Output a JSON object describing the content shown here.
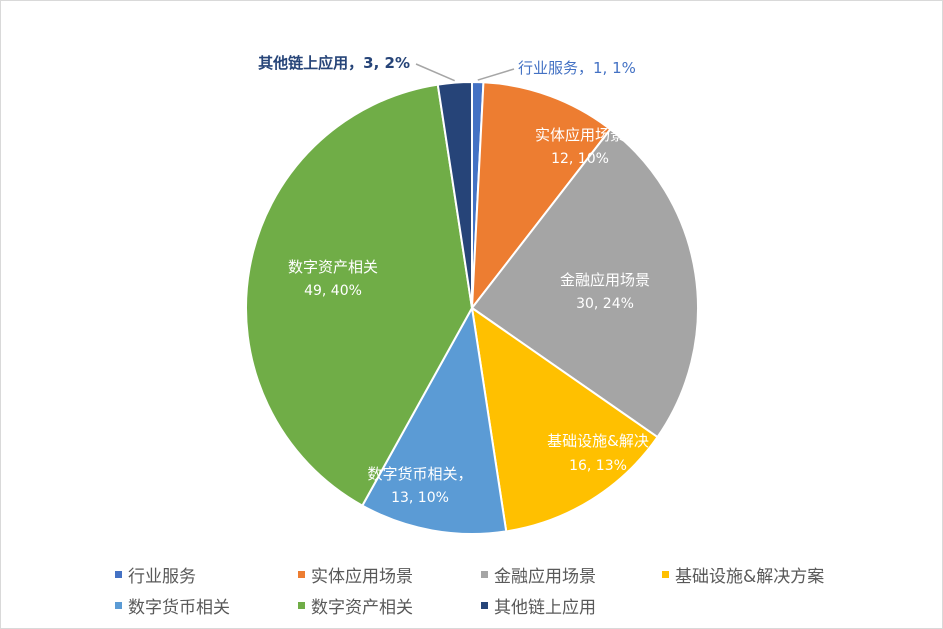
{
  "chart_data": {
    "type": "pie",
    "categories": [
      "行业服务",
      "实体应用场景",
      "金融应用场景",
      "基础设施&解决方案",
      "数字货币相关",
      "数字资产相关",
      "其他链上应用"
    ],
    "values": [
      1,
      12,
      30,
      16,
      13,
      49,
      3
    ],
    "percents": [
      "1%",
      "10%",
      "24%",
      "13%",
      "10%",
      "40%",
      "2%"
    ],
    "data_labels": [
      {
        "name": "行业服务，",
        "value": "1, 1%"
      },
      {
        "name": "实体应用场景",
        "value": "12, 10%"
      },
      {
        "name": "金融应用场景",
        "value": "30, 24%"
      },
      {
        "name": "基础设施&解决",
        "value": "16, 13%"
      },
      {
        "name": "数字货币相关，",
        "value": "13, 10%"
      },
      {
        "name": "数字资产相关",
        "value": "49, 40%"
      },
      {
        "name": "其他链上应用，",
        "value": "3, 2%"
      }
    ],
    "colors": [
      "#4472c4",
      "#ed7d31",
      "#a5a5a5",
      "#ffc000",
      "#5b9bd5",
      "#70ad47",
      "#264478"
    ],
    "legend_position": "bottom"
  },
  "legend": {
    "items": [
      "行业服务",
      "实体应用场景",
      "金融应用场景",
      "基础设施&解决方案",
      "数字货币相关",
      "数字资产相关",
      "其他链上应用"
    ]
  }
}
